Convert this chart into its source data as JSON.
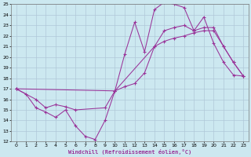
{
  "xlabel": "Windchill (Refroidissement éolien,°C)",
  "bg_color": "#cce8f0",
  "grid_color": "#b0c8d8",
  "line_color": "#993399",
  "xlim": [
    -0.5,
    23.5
  ],
  "ylim": [
    12,
    25
  ],
  "xticks": [
    0,
    1,
    2,
    3,
    4,
    5,
    6,
    7,
    8,
    9,
    10,
    11,
    12,
    13,
    14,
    15,
    16,
    17,
    18,
    19,
    20,
    21,
    22,
    23
  ],
  "yticks": [
    12,
    13,
    14,
    15,
    16,
    17,
    18,
    19,
    20,
    21,
    22,
    23,
    24,
    25
  ],
  "series1": [
    [
      0,
      17.0
    ],
    [
      1,
      16.5
    ],
    [
      2,
      15.2
    ],
    [
      3,
      14.8
    ],
    [
      4,
      14.3
    ],
    [
      5,
      15.0
    ],
    [
      6,
      13.5
    ],
    [
      7,
      12.5
    ],
    [
      8,
      12.2
    ],
    [
      9,
      14.0
    ],
    [
      10,
      16.8
    ],
    [
      11,
      20.3
    ],
    [
      12,
      23.3
    ],
    [
      13,
      20.5
    ],
    [
      14,
      24.5
    ],
    [
      15,
      25.2
    ],
    [
      16,
      25.0
    ],
    [
      17,
      24.7
    ],
    [
      18,
      22.5
    ],
    [
      19,
      23.8
    ],
    [
      20,
      21.3
    ],
    [
      21,
      19.5
    ],
    [
      22,
      18.3
    ],
    [
      23,
      18.2
    ]
  ],
  "series2": [
    [
      0,
      17.0
    ],
    [
      2,
      16.0
    ],
    [
      3,
      15.2
    ],
    [
      4,
      15.5
    ],
    [
      5,
      15.3
    ],
    [
      6,
      15.0
    ],
    [
      9,
      15.2
    ],
    [
      10,
      16.8
    ],
    [
      14,
      21.0
    ],
    [
      15,
      22.5
    ],
    [
      16,
      22.8
    ],
    [
      17,
      23.0
    ],
    [
      18,
      22.5
    ],
    [
      19,
      22.8
    ],
    [
      20,
      22.8
    ],
    [
      21,
      21.0
    ],
    [
      22,
      19.5
    ],
    [
      23,
      18.2
    ]
  ],
  "series3": [
    [
      0,
      17.0
    ],
    [
      10,
      16.8
    ],
    [
      11,
      17.2
    ],
    [
      12,
      17.5
    ],
    [
      13,
      18.5
    ],
    [
      14,
      21.0
    ],
    [
      15,
      21.5
    ],
    [
      16,
      21.8
    ],
    [
      17,
      22.0
    ],
    [
      18,
      22.3
    ],
    [
      19,
      22.5
    ],
    [
      20,
      22.5
    ],
    [
      21,
      21.0
    ],
    [
      22,
      19.5
    ],
    [
      23,
      18.2
    ]
  ]
}
